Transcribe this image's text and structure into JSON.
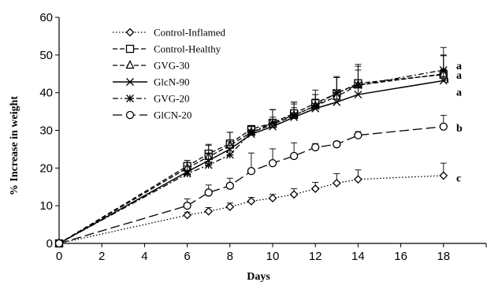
{
  "chart_data": {
    "type": "line",
    "title": "",
    "xlabel": "Days",
    "ylabel": "% Increase  in  weight",
    "xlim": [
      0,
      20
    ],
    "ylim": [
      0,
      60
    ],
    "xticks": [
      0,
      2,
      4,
      6,
      8,
      10,
      12,
      14,
      16,
      18,
      20
    ],
    "yticks": [
      0,
      10,
      20,
      30,
      40,
      50,
      60
    ],
    "grid": false,
    "legend_position": "top-left",
    "series": [
      {
        "name": "Control-Inflamed",
        "marker": "diamond",
        "line": "dotted",
        "x": [
          0,
          6,
          7,
          8,
          9,
          10,
          11,
          12,
          13,
          14,
          18
        ],
        "y": [
          0,
          7.5,
          8.5,
          9.7,
          11.2,
          12.0,
          13.0,
          14.5,
          16.0,
          17.0,
          18.0
        ],
        "err": [
          0,
          0.8,
          1.0,
          1.0,
          1.0,
          1.0,
          1.5,
          1.7,
          2.5,
          2.5,
          3.3
        ]
      },
      {
        "name": "Control-Healthy",
        "marker": "square",
        "line": "dashed",
        "x": [
          0,
          6,
          7,
          8,
          9,
          10,
          11,
          12,
          13,
          14,
          18
        ],
        "y": [
          0,
          20.5,
          23.8,
          26.5,
          30.3,
          32.0,
          34.5,
          37.2,
          39.8,
          42.5,
          44.8
        ],
        "err": [
          0,
          1.5,
          2.5,
          3.0,
          1.0,
          3.5,
          3.0,
          3.5,
          4.5,
          4.5,
          5.0
        ]
      },
      {
        "name": "GVG-30",
        "marker": "triangle",
        "line": "dashed",
        "x": [
          0,
          6,
          7,
          8,
          9,
          10,
          11,
          12,
          13,
          14,
          18
        ],
        "y": [
          0,
          20.0,
          23.0,
          26.0,
          29.5,
          31.5,
          34.0,
          36.5,
          39.0,
          42.0,
          45.0
        ],
        "err": [
          0,
          2.0,
          3.0,
          3.5,
          1.5,
          4.0,
          3.5,
          3.0,
          5.0,
          5.5,
          5.0
        ]
      },
      {
        "name": "GlcN-90",
        "marker": "x",
        "line": "solid",
        "x": [
          0,
          6,
          7,
          8,
          9,
          10,
          11,
          12,
          13,
          14,
          18
        ],
        "y": [
          0,
          19.0,
          22.0,
          25.0,
          29.0,
          31.0,
          33.5,
          35.8,
          37.5,
          39.5,
          43.2
        ],
        "err": [
          0,
          1.5,
          2.0,
          2.0,
          1.0,
          2.5,
          2.5,
          2.5,
          2.5,
          2.0,
          3.0
        ]
      },
      {
        "name": "GVG-20",
        "marker": "asterisk",
        "line": "dash-dot",
        "x": [
          0,
          6,
          7,
          8,
          9,
          10,
          11,
          12,
          13,
          14,
          18
        ],
        "y": [
          0,
          18.5,
          20.8,
          23.5,
          29.5,
          32.0,
          34.0,
          36.5,
          40.0,
          42.0,
          46.0
        ],
        "err": [
          0,
          2.0,
          3.0,
          2.5,
          1.5,
          3.5,
          3.0,
          3.0,
          4.0,
          4.0,
          6.0
        ]
      },
      {
        "name": "GlCN-20",
        "marker": "circle",
        "line": "long-dash",
        "x": [
          0,
          6,
          7,
          8,
          9,
          10,
          11,
          12,
          13,
          14,
          18
        ],
        "y": [
          0,
          10.0,
          13.5,
          15.3,
          19.2,
          21.3,
          23.2,
          25.5,
          26.3,
          28.7,
          31.0
        ],
        "err": [
          0,
          1.8,
          2.0,
          2.0,
          4.8,
          3.8,
          3.5,
          1.0,
          0.8,
          1.0,
          3.0
        ]
      }
    ],
    "annotations": [
      {
        "text": "a",
        "x": 18.6,
        "y": 47.0
      },
      {
        "text": "a",
        "x": 18.6,
        "y": 44.5
      },
      {
        "text": "a",
        "x": 18.0,
        "y": 43.5
      },
      {
        "text": "a",
        "x": 18.6,
        "y": 40.0
      },
      {
        "text": "b",
        "x": 18.6,
        "y": 30.5
      },
      {
        "text": "c",
        "x": 18.6,
        "y": 17.2
      }
    ]
  }
}
